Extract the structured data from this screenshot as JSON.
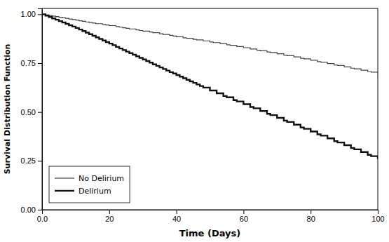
{
  "chart_data": {
    "type": "step",
    "xlabel": "Time (Days)",
    "ylabel": "Survival Distribution Function",
    "xlim": [
      0,
      100
    ],
    "ylim": [
      0.0,
      1.03
    ],
    "xticks": [
      {
        "value": 0,
        "label": "0.0"
      },
      20,
      40,
      60,
      80,
      100
    ],
    "yticks": [
      {
        "value": 0.0,
        "label": "0.00"
      },
      0.25,
      {
        "value": 0.5,
        "label": "0.50"
      },
      0.75,
      {
        "value": 1.0,
        "label": "1.00"
      }
    ],
    "grid": false,
    "legend": "lower left",
    "series": [
      {
        "name": "No Delirium",
        "color": "#444444",
        "x": [
          0,
          1,
          2,
          3,
          4,
          5,
          6,
          7,
          8,
          9,
          10,
          11,
          12,
          13,
          14,
          15,
          16,
          18,
          19,
          20,
          22,
          23,
          24,
          25,
          26,
          28,
          29,
          30,
          32,
          33,
          35,
          36,
          38,
          39,
          40,
          42,
          43,
          45,
          46,
          48,
          50,
          51,
          53,
          55,
          56,
          58,
          60,
          62,
          64,
          65,
          67,
          68,
          70,
          72,
          73,
          75,
          77,
          78,
          80,
          82,
          83,
          85,
          87,
          88,
          90,
          92,
          93,
          95,
          97,
          98,
          100
        ],
        "values": [
          1.0,
          0.997,
          0.994,
          0.991,
          0.988,
          0.985,
          0.982,
          0.979,
          0.976,
          0.973,
          0.97,
          0.967,
          0.964,
          0.961,
          0.958,
          0.955,
          0.952,
          0.948,
          0.945,
          0.942,
          0.937,
          0.934,
          0.931,
          0.928,
          0.925,
          0.92,
          0.917,
          0.914,
          0.909,
          0.906,
          0.9,
          0.897,
          0.892,
          0.889,
          0.885,
          0.88,
          0.877,
          0.872,
          0.869,
          0.864,
          0.858,
          0.855,
          0.85,
          0.844,
          0.841,
          0.835,
          0.829,
          0.822,
          0.816,
          0.813,
          0.807,
          0.804,
          0.798,
          0.791,
          0.788,
          0.782,
          0.775,
          0.772,
          0.765,
          0.758,
          0.755,
          0.748,
          0.741,
          0.738,
          0.731,
          0.724,
          0.721,
          0.714,
          0.707,
          0.704,
          0.697
        ]
      },
      {
        "name": "Delirium",
        "color": "#111111",
        "x": [
          0,
          1,
          2,
          3,
          4,
          5,
          6,
          7,
          8,
          9,
          10,
          11,
          12,
          13,
          14,
          15,
          16,
          17,
          18,
          19,
          20,
          21,
          22,
          23,
          24,
          25,
          26,
          27,
          28,
          29,
          30,
          31,
          32,
          33,
          34,
          35,
          36,
          37,
          38,
          39,
          40,
          41,
          42,
          43,
          44,
          45,
          46,
          47,
          48,
          50,
          52,
          54,
          55,
          57,
          58,
          60,
          62,
          63,
          65,
          67,
          68,
          70,
          72,
          73,
          75,
          77,
          78,
          80,
          82,
          83,
          85,
          87,
          88,
          90,
          92,
          93,
          95,
          97,
          98,
          100
        ],
        "values": [
          1.0,
          0.993,
          0.986,
          0.979,
          0.972,
          0.965,
          0.958,
          0.951,
          0.944,
          0.937,
          0.93,
          0.922,
          0.914,
          0.906,
          0.898,
          0.89,
          0.882,
          0.874,
          0.866,
          0.858,
          0.85,
          0.842,
          0.833,
          0.825,
          0.817,
          0.809,
          0.801,
          0.793,
          0.785,
          0.777,
          0.769,
          0.761,
          0.753,
          0.744,
          0.736,
          0.728,
          0.72,
          0.712,
          0.704,
          0.697,
          0.689,
          0.681,
          0.673,
          0.665,
          0.657,
          0.649,
          0.641,
          0.633,
          0.625,
          0.61,
          0.596,
          0.582,
          0.575,
          0.561,
          0.554,
          0.54,
          0.526,
          0.519,
          0.505,
          0.491,
          0.484,
          0.47,
          0.456,
          0.449,
          0.435,
          0.421,
          0.414,
          0.4,
          0.386,
          0.379,
          0.365,
          0.351,
          0.344,
          0.33,
          0.316,
          0.309,
          0.295,
          0.281,
          0.274,
          0.26
        ]
      }
    ]
  }
}
